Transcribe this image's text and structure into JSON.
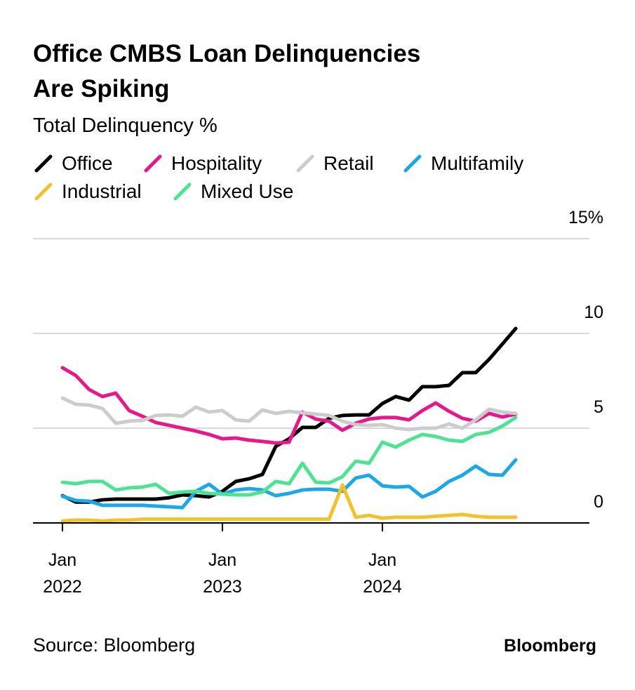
{
  "chart_data": {
    "type": "line",
    "title": "Office CMBS Loan Delinquencies Are Spiking",
    "title_lines": [
      "Office CMBS Loan Delinquencies",
      "Are Spiking"
    ],
    "subtitle": "Total Delinquency %",
    "source": "Source: Bloomberg",
    "logo": "Bloomberg",
    "x_start": "2022-01",
    "x_frequency": "monthly",
    "x_ticks": [
      {
        "index": 0,
        "month": "Jan",
        "year": "2022"
      },
      {
        "index": 12,
        "month": "Jan",
        "year": "2023"
      },
      {
        "index": 24,
        "month": "Jan",
        "year": "2024"
      }
    ],
    "ylim": [
      0,
      15
    ],
    "y_ticks": [
      {
        "value": 0,
        "label": "0"
      },
      {
        "value": 5,
        "label": "5"
      },
      {
        "value": 10,
        "label": "10"
      },
      {
        "value": 15,
        "label": "15%"
      }
    ],
    "grid": true,
    "legend_position": "top-left",
    "series": [
      {
        "name": "Office",
        "color": "#000000",
        "values": [
          1.44,
          1.1,
          1.1,
          1.22,
          1.26,
          1.26,
          1.26,
          1.26,
          1.33,
          1.48,
          1.44,
          1.37,
          1.67,
          2.19,
          2.33,
          2.56,
          4.04,
          4.44,
          5.04,
          5.04,
          5.52,
          5.67,
          5.7,
          5.7,
          6.3,
          6.67,
          6.48,
          7.19,
          7.19,
          7.26,
          7.93,
          7.93,
          8.63,
          9.44,
          10.26
        ]
      },
      {
        "name": "Hospitality",
        "color": "#e5198c",
        "values": [
          8.19,
          7.78,
          7.04,
          6.67,
          6.85,
          5.93,
          5.63,
          5.3,
          5.15,
          5.0,
          4.85,
          4.67,
          4.44,
          4.48,
          4.37,
          4.3,
          4.22,
          4.26,
          5.85,
          5.48,
          5.37,
          4.89,
          5.26,
          5.48,
          5.56,
          5.56,
          5.44,
          5.93,
          6.33,
          5.89,
          5.52,
          5.37,
          5.78,
          5.59,
          5.74
        ]
      },
      {
        "name": "Retail",
        "color": "#cccccc",
        "values": [
          6.59,
          6.26,
          6.22,
          6.04,
          5.26,
          5.37,
          5.41,
          5.67,
          5.7,
          5.63,
          6.11,
          5.85,
          5.93,
          5.44,
          5.37,
          5.96,
          5.78,
          5.89,
          5.81,
          5.74,
          5.67,
          5.37,
          5.19,
          5.15,
          5.19,
          5.0,
          4.93,
          5.0,
          5.0,
          5.22,
          5.0,
          5.44,
          6.0,
          5.85,
          5.78
        ]
      },
      {
        "name": "Multifamily",
        "color": "#1ea7e6",
        "values": [
          1.41,
          1.19,
          1.15,
          0.93,
          0.93,
          0.93,
          0.93,
          0.89,
          0.85,
          0.81,
          1.67,
          2.04,
          1.52,
          1.74,
          1.81,
          1.74,
          1.44,
          1.56,
          1.74,
          1.78,
          1.78,
          1.67,
          2.37,
          2.52,
          1.96,
          1.89,
          1.93,
          1.37,
          1.67,
          2.19,
          2.52,
          3.0,
          2.56,
          2.52,
          3.33
        ]
      },
      {
        "name": "Industrial",
        "color": "#f2c12e",
        "values": [
          0.1,
          0.15,
          0.15,
          0.1,
          0.15,
          0.15,
          0.2,
          0.2,
          0.2,
          0.2,
          0.2,
          0.2,
          0.2,
          0.2,
          0.2,
          0.2,
          0.2,
          0.2,
          0.2,
          0.2,
          0.2,
          2.0,
          0.3,
          0.4,
          0.25,
          0.3,
          0.3,
          0.3,
          0.35,
          0.4,
          0.45,
          0.35,
          0.3,
          0.3,
          0.3
        ]
      },
      {
        "name": "Mixed Use",
        "color": "#4ee394",
        "values": [
          2.15,
          2.07,
          2.19,
          2.19,
          1.74,
          1.85,
          1.89,
          2.04,
          1.56,
          1.63,
          1.67,
          1.56,
          1.52,
          1.48,
          1.48,
          1.63,
          2.19,
          2.07,
          3.15,
          2.15,
          2.11,
          2.44,
          3.26,
          3.15,
          4.26,
          4.0,
          4.37,
          4.67,
          4.56,
          4.37,
          4.3,
          4.67,
          4.78,
          5.11,
          5.56
        ]
      }
    ]
  }
}
